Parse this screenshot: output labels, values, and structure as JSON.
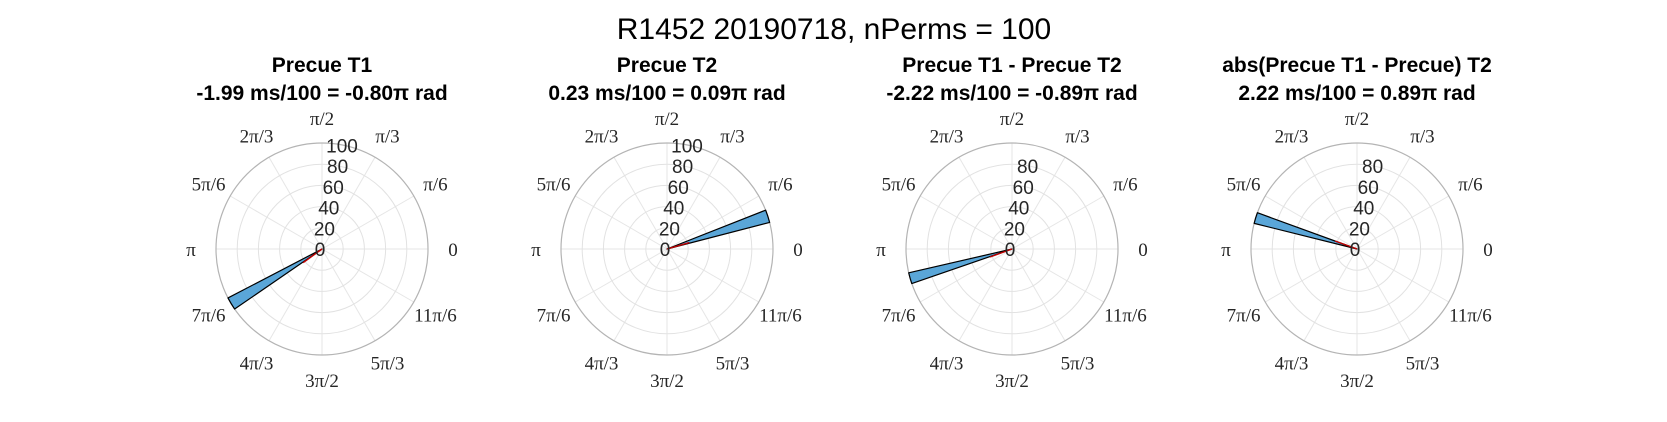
{
  "figure": {
    "title": "R1452 20190718, nPerms = 100"
  },
  "angle_tick_labels": [
    "0",
    "π/6",
    "π/3",
    "π/2",
    "2π/3",
    "5π/6",
    "π",
    "7π/6",
    "4π/3",
    "3π/2",
    "5π/3",
    "11π/6"
  ],
  "colors": {
    "bar_fill": "#5aa6d8",
    "bar_edge": "#000000",
    "mean_line": "#c00000",
    "grid": "#e2e2e2"
  },
  "chart_data": [
    {
      "type": "polar-histogram",
      "title": "Precue T1",
      "subtitle": "-1.99 ms/100 = -0.80π rad",
      "rlim": [
        0,
        100
      ],
      "rticks": [
        0,
        20,
        40,
        60,
        80,
        100
      ],
      "bins": [
        {
          "angle_deg": 211,
          "width_deg": 7,
          "count": 100
        }
      ],
      "mean_angle_deg": 216,
      "grid": true
    },
    {
      "type": "polar-histogram",
      "title": "Precue T2",
      "subtitle": "0.23 ms/100 = 0.09π rad",
      "rlim": [
        0,
        100
      ],
      "rticks": [
        0,
        20,
        40,
        60,
        80,
        100
      ],
      "bins": [
        {
          "angle_deg": 18,
          "width_deg": 7,
          "count": 100
        }
      ],
      "mean_angle_deg": 16,
      "grid": true
    },
    {
      "type": "polar-histogram",
      "title": "Precue T1 - Precue T2",
      "subtitle": "-2.22 ms/100 = -0.89π rad",
      "rlim": [
        0,
        100
      ],
      "rticks": [
        0,
        20,
        40,
        60,
        80
      ],
      "bins": [
        {
          "angle_deg": 196,
          "width_deg": 6,
          "count": 100
        }
      ],
      "mean_angle_deg": 200,
      "grid": true
    },
    {
      "type": "polar-histogram",
      "title": "abs(Precue T1 - Precue) T2",
      "subtitle": "2.22 ms/100 = 0.89π rad",
      "rlim": [
        0,
        100
      ],
      "rticks": [
        0,
        20,
        40,
        60,
        80
      ],
      "bins": [
        {
          "angle_deg": 163,
          "width_deg": 6,
          "count": 100
        }
      ],
      "mean_angle_deg": 160,
      "grid": true
    }
  ]
}
